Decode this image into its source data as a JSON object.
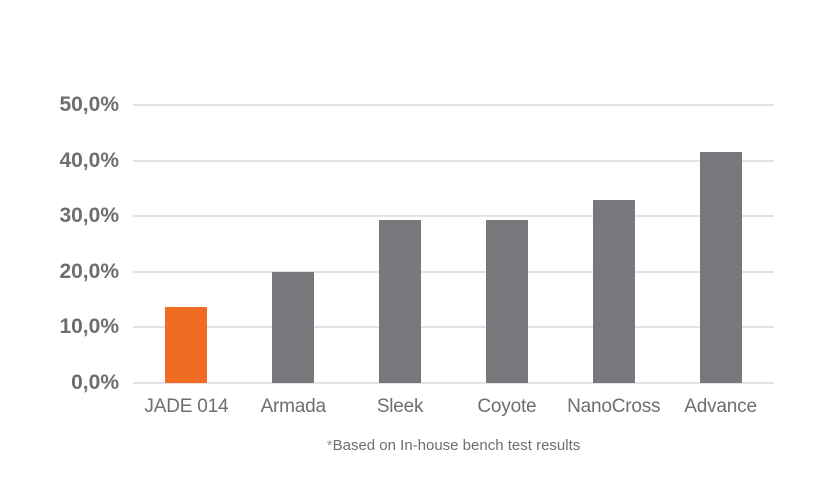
{
  "page": {
    "background": "#ffffff"
  },
  "chart_data": {
    "type": "bar",
    "categories": [
      "JADE 014",
      "Armada",
      "Sleek",
      "Coyote",
      "NanoCross",
      "Advance"
    ],
    "values": [
      13.6,
      19.9,
      29.4,
      29.4,
      32.9,
      41.6
    ],
    "title": "",
    "xlabel": "",
    "ylabel": "",
    "ylim": [
      0,
      50
    ],
    "yticks": [
      0,
      10,
      20,
      30,
      40,
      50
    ],
    "ytick_labels": [
      "0,0%",
      "10,0%",
      "20,0%",
      "30,0%",
      "40,0%",
      "50,0%"
    ],
    "grid": true,
    "legend": "none",
    "highlight_index": 0,
    "colors": {
      "highlight_bar": "#f06c23",
      "default_bar": "#77787c",
      "axis_text": "#6d6e71",
      "gridline": "#e3e3e5",
      "footnote_text": "#6d6e71"
    },
    "footnote_marker": "*",
    "footnote_text": "Based on In-house bench test results"
  }
}
